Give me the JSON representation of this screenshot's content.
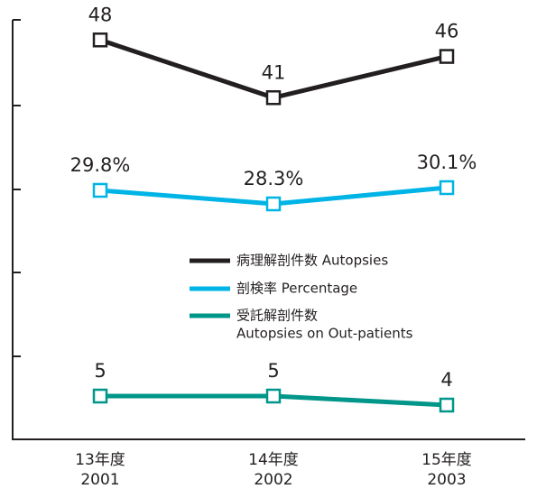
{
  "chart_data": {
    "type": "line",
    "categories": [
      [
        "13年度",
        "2001"
      ],
      [
        "14年度",
        "2002"
      ],
      [
        "15年度",
        "2003"
      ]
    ],
    "series": [
      {
        "name": "病理解剖件数 Autopsies",
        "color": "#231f20",
        "values": [
          48,
          41,
          46
        ]
      },
      {
        "name": "剖検率 Percentage",
        "color": "#00b4e6",
        "values": [
          29.8,
          28.3,
          30.1
        ],
        "value_labels": [
          "29.8%",
          "28.3%",
          "30.1%"
        ]
      },
      {
        "name": [
          "受託解剖件数",
          "Autopsies on Out-patients"
        ],
        "color": "#00968a",
        "values": [
          5,
          5,
          4
        ]
      }
    ]
  }
}
